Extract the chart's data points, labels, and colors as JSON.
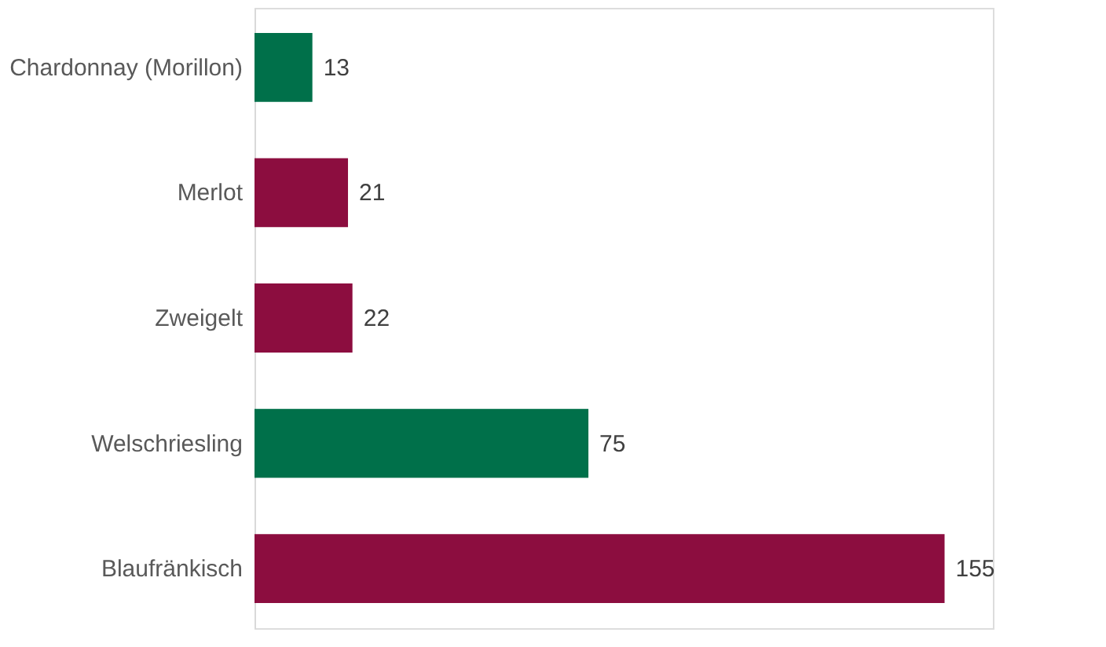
{
  "chart_data": {
    "type": "bar",
    "orientation": "horizontal",
    "categories": [
      "Chardonnay (Morillon)",
      "Merlot",
      "Zweigelt",
      "Welschriesling",
      "Blaufränkisch"
    ],
    "values": [
      13,
      21,
      22,
      75,
      155
    ],
    "colors": [
      "#00704a",
      "#8c0d3f",
      "#8c0d3f",
      "#00704a",
      "#8c0d3f"
    ],
    "data_labels": true
  }
}
